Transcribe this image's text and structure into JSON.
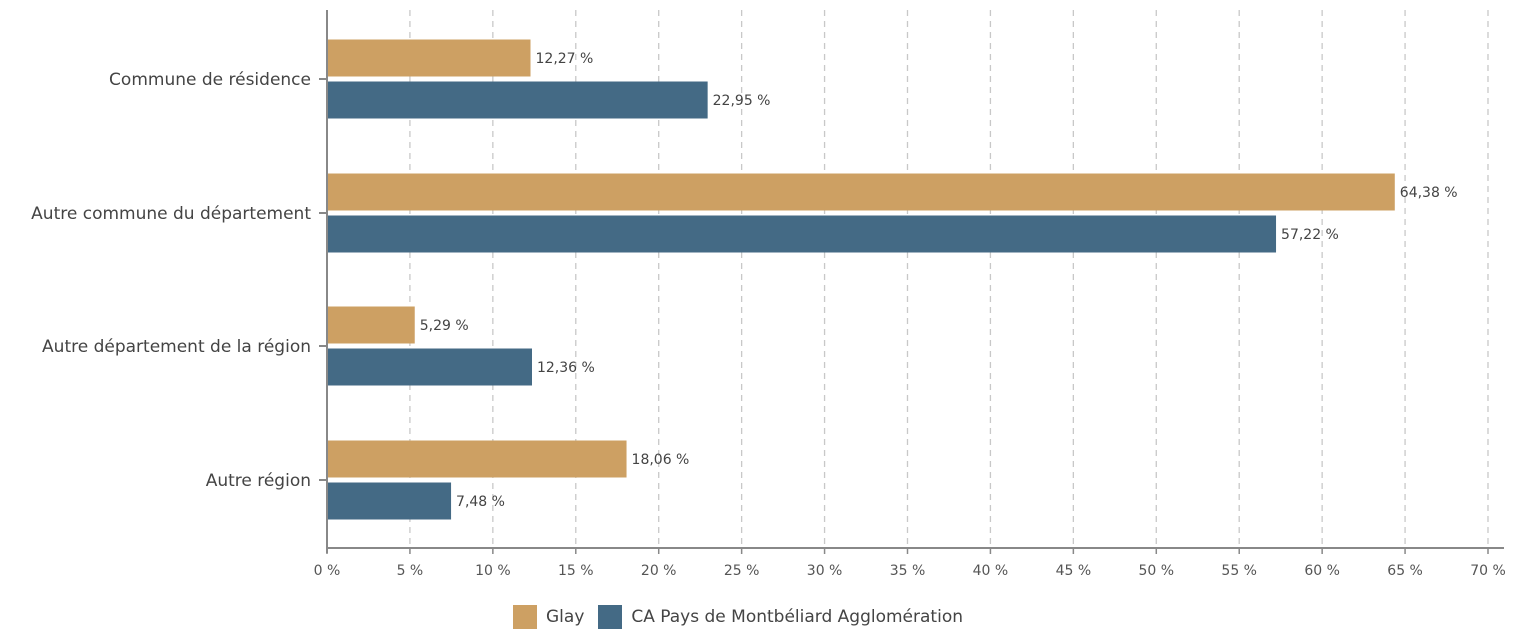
{
  "chart_data": {
    "type": "bar",
    "orientation": "horizontal",
    "categories": [
      "Commune de résidence",
      "Autre commune du département",
      "Autre département de la région",
      "Autre région"
    ],
    "series": [
      {
        "name": "Glay",
        "values": [
          12.27,
          64.38,
          5.29,
          18.06
        ],
        "labels": [
          "12,27 %",
          "64,38 %",
          "5,29 %",
          "18,06 %"
        ],
        "color": "#CDA063"
      },
      {
        "name": "CA Pays de Montbéliard Agglomération",
        "values": [
          22.95,
          57.22,
          12.36,
          7.48
        ],
        "labels": [
          "22,95 %",
          "57,22 %",
          "12,36 %",
          "7,48 %"
        ],
        "color": "#446A85"
      }
    ],
    "xlim": [
      0,
      70
    ],
    "xticks": [
      0,
      5,
      10,
      15,
      20,
      25,
      30,
      35,
      40,
      45,
      50,
      55,
      60,
      65,
      70
    ],
    "xtick_labels": [
      "0 %",
      "5 %",
      "10 %",
      "15 %",
      "20 %",
      "25 %",
      "30 %",
      "35 %",
      "40 %",
      "45 %",
      "50 %",
      "55 %",
      "60 %",
      "65 %",
      "70 %"
    ],
    "grid": "vertical dashed",
    "legend_position": "bottom"
  },
  "colors": {
    "axis": "#888888",
    "grid": "#c8c8c8"
  }
}
